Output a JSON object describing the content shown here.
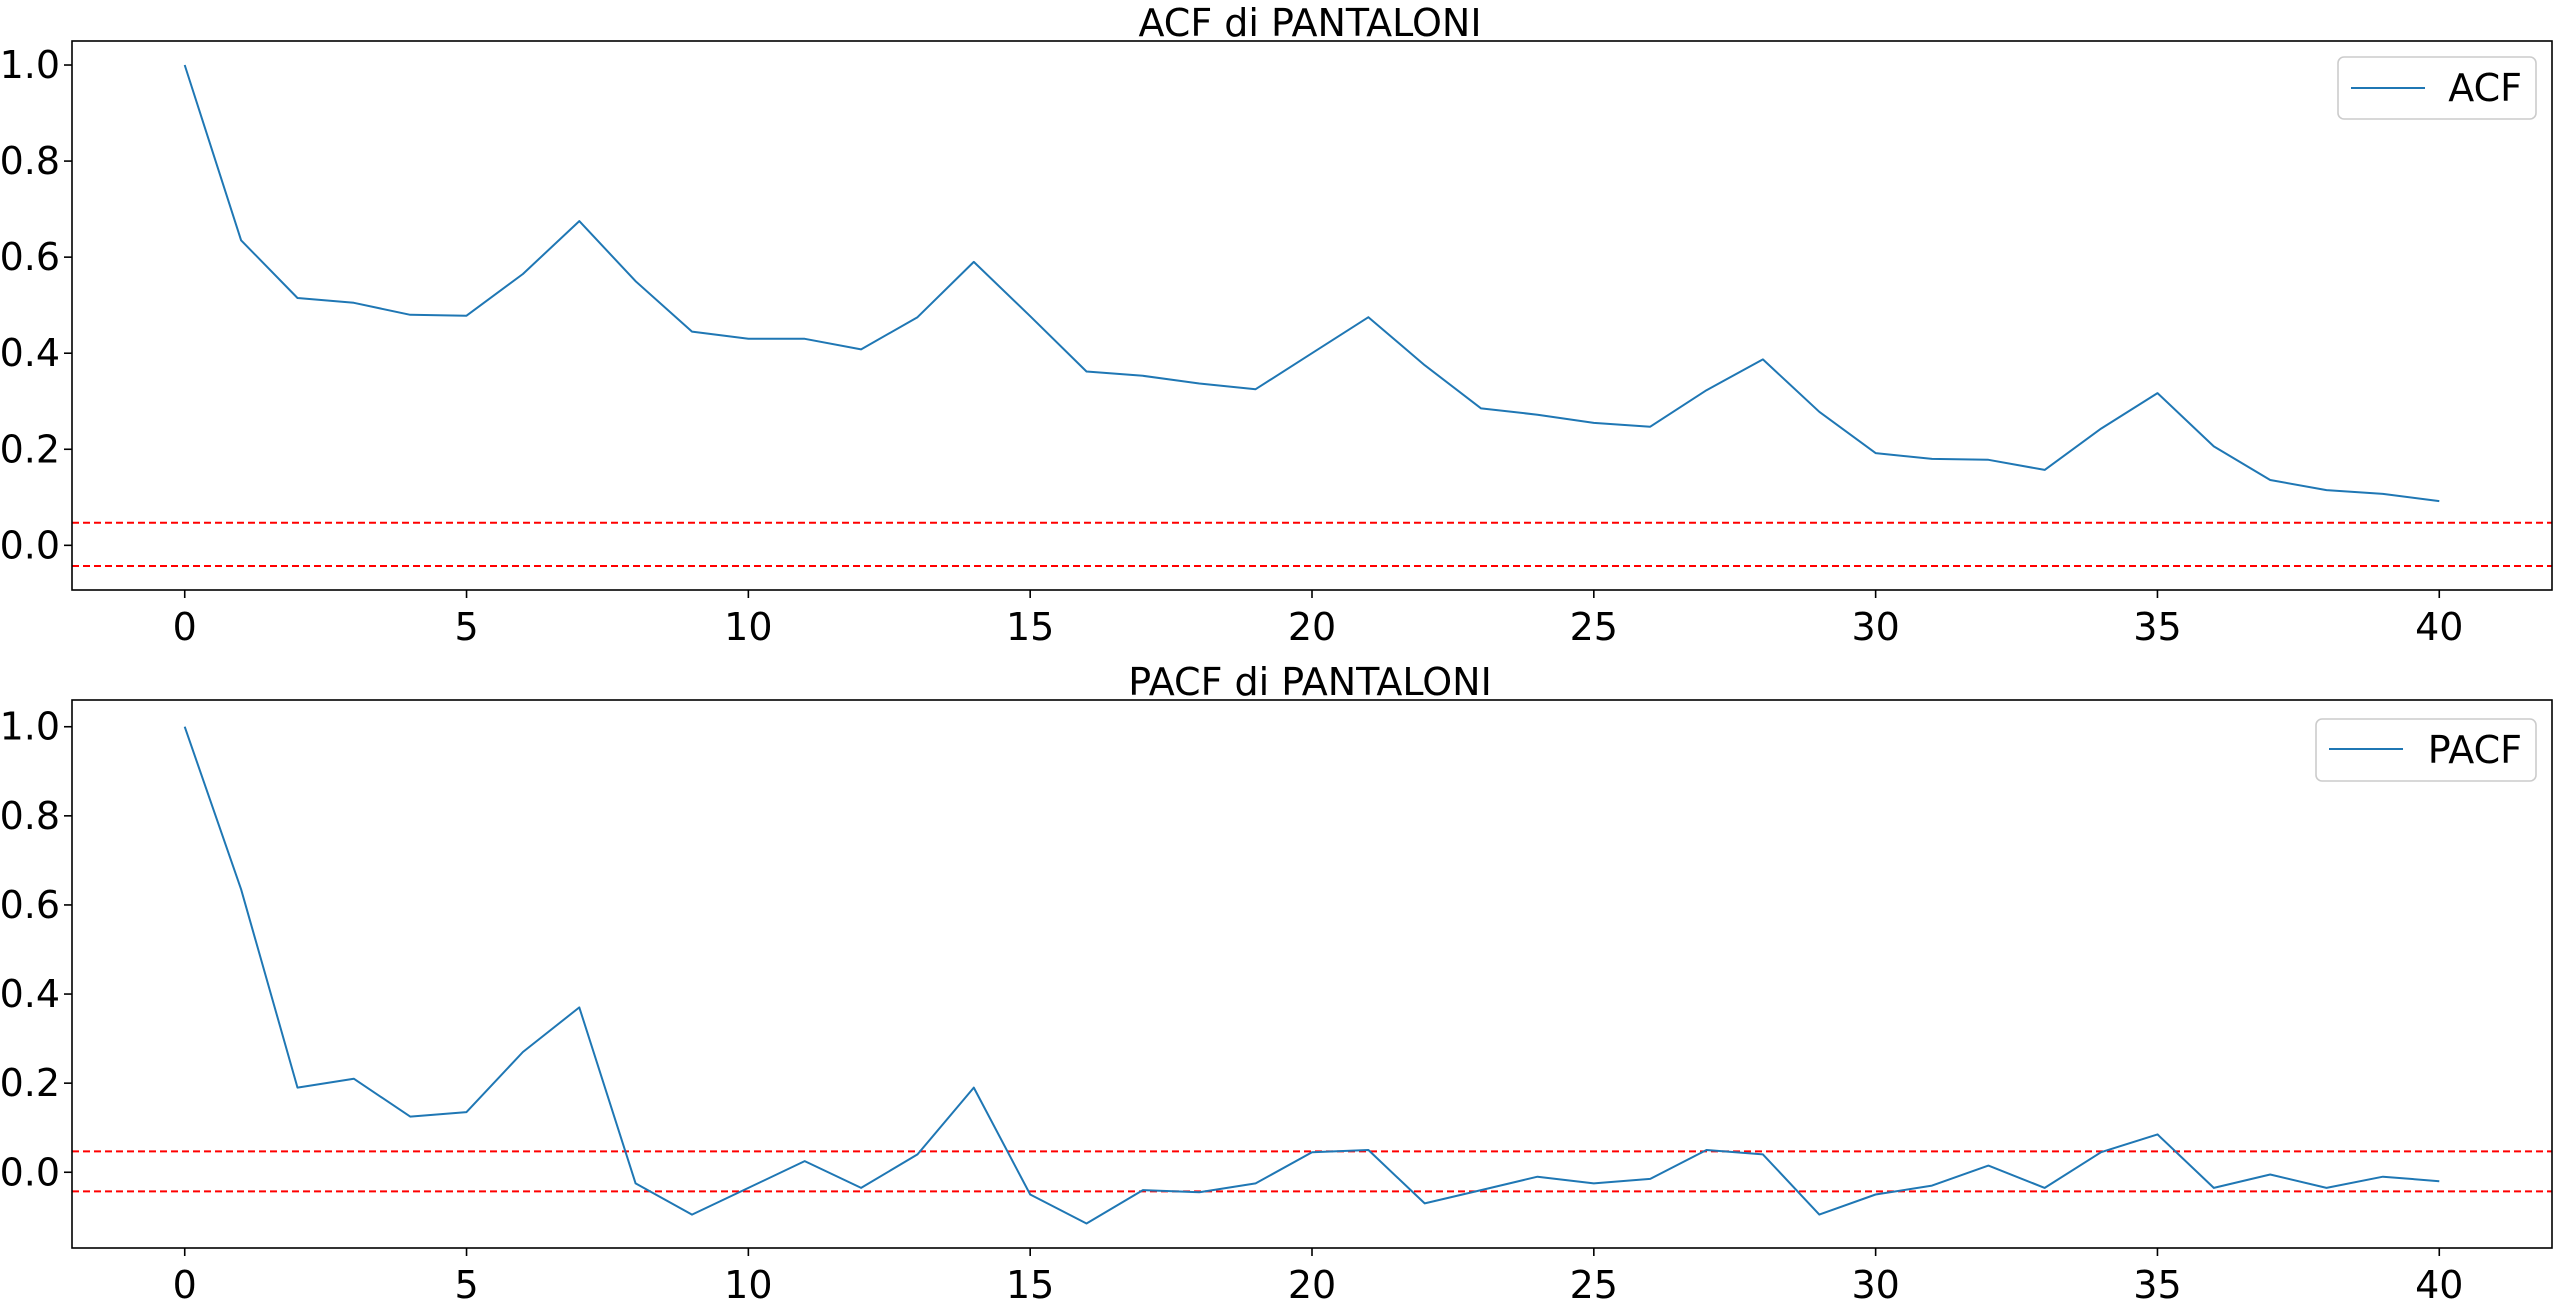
{
  "chart_data": [
    {
      "type": "line",
      "title": "ACF di PANTALONI",
      "xlabel": "",
      "ylabel": "",
      "xlim": [
        -2,
        42
      ],
      "ylim": [
        -0.093,
        1.05
      ],
      "xticks": [
        0,
        5,
        10,
        15,
        20,
        25,
        30,
        35,
        40
      ],
      "yticks": [
        0.0,
        0.2,
        0.4,
        0.6,
        0.8,
        1.0
      ],
      "grid": false,
      "legend": "top-right",
      "series": [
        {
          "name": "ACF",
          "color": "#1f77b4",
          "x": [
            0,
            1,
            2,
            3,
            4,
            5,
            6,
            7,
            8,
            9,
            10,
            11,
            12,
            13,
            14,
            15,
            16,
            17,
            18,
            19,
            20,
            21,
            22,
            23,
            24,
            25,
            26,
            27,
            28,
            29,
            30,
            31,
            32,
            33,
            34,
            35,
            36,
            37,
            38,
            39,
            40
          ],
          "values": [
            1.0,
            0.635,
            0.515,
            0.505,
            0.48,
            0.478,
            0.565,
            0.675,
            0.55,
            0.445,
            0.43,
            0.43,
            0.408,
            0.475,
            0.59,
            0.477,
            0.362,
            0.353,
            0.337,
            0.325,
            0.4,
            0.475,
            0.375,
            0.285,
            0.272,
            0.255,
            0.247,
            0.323,
            0.387,
            0.278,
            0.192,
            0.18,
            0.178,
            0.157,
            0.243,
            0.317,
            0.206,
            0.136,
            0.115,
            0.107,
            0.092
          ]
        }
      ],
      "reference_lines": [
        {
          "y": 0.047,
          "color": "#ff0000",
          "style": "dashed"
        },
        {
          "y": -0.043,
          "color": "#ff0000",
          "style": "dashed"
        }
      ]
    },
    {
      "type": "line",
      "title": "PACF di PANTALONI",
      "xlabel": "",
      "ylabel": "",
      "xlim": [
        -2,
        42
      ],
      "ylim": [
        -0.17,
        1.06
      ],
      "xticks": [
        0,
        5,
        10,
        15,
        20,
        25,
        30,
        35,
        40
      ],
      "yticks": [
        0.0,
        0.2,
        0.4,
        0.6,
        0.8,
        1.0
      ],
      "grid": false,
      "legend": "top-right",
      "series": [
        {
          "name": "PACF",
          "color": "#1f77b4",
          "x": [
            0,
            1,
            2,
            3,
            4,
            5,
            6,
            7,
            8,
            9,
            10,
            11,
            12,
            13,
            14,
            15,
            16,
            17,
            18,
            19,
            20,
            21,
            22,
            23,
            24,
            25,
            26,
            27,
            28,
            29,
            30,
            31,
            32,
            33,
            34,
            35,
            36,
            37,
            38,
            39,
            40
          ],
          "values": [
            1.0,
            0.635,
            0.19,
            0.21,
            0.125,
            0.135,
            0.27,
            0.37,
            -0.025,
            -0.095,
            -0.035,
            0.025,
            -0.035,
            0.04,
            0.19,
            -0.05,
            -0.115,
            -0.04,
            -0.045,
            -0.025,
            0.045,
            0.05,
            -0.07,
            -0.04,
            -0.01,
            -0.025,
            -0.015,
            0.05,
            0.04,
            -0.095,
            -0.05,
            -0.03,
            0.015,
            -0.035,
            0.045,
            0.085,
            -0.035,
            -0.005,
            -0.035,
            -0.01,
            -0.02
          ]
        }
      ],
      "reference_lines": [
        {
          "y": 0.047,
          "color": "#ff0000",
          "style": "dashed"
        },
        {
          "y": -0.043,
          "color": "#ff0000",
          "style": "dashed"
        }
      ]
    }
  ]
}
